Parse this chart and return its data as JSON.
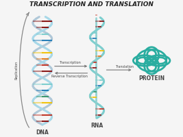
{
  "title": "TRANSCRIPTION AND TRANSLATION",
  "title_fontsize": 6.5,
  "title_style": "italic",
  "title_weight": "bold",
  "bg_color": "#f5f5f5",
  "dna_label": "DNA",
  "rna_label": "RNA",
  "protein_label": "PROTEIN",
  "label_fontsize": 5.5,
  "label_weight": "bold",
  "replication_label": "Replication",
  "transcription_label": "Transcription",
  "reverse_label": "Reverse Transcription",
  "translation_label": "Translation",
  "arrow_label_fontsize": 3.5,
  "strand_color1": "#a8d8e8",
  "strand_color2": "#b0c8d8",
  "rna_strand_color": "#7ecece",
  "rna_straight_color": "#90d0d0",
  "protein_color": "#2aada0",
  "rung_colors": [
    "#8b1a1a",
    "#c0392b",
    "#e67e22",
    "#f1c40f",
    "#3d9970",
    "#2980b9",
    "#7ecece",
    "#8b1a1a"
  ],
  "arrow_color": "#777777",
  "replication_arrow_color": "#888888",
  "text_color": "#444444"
}
